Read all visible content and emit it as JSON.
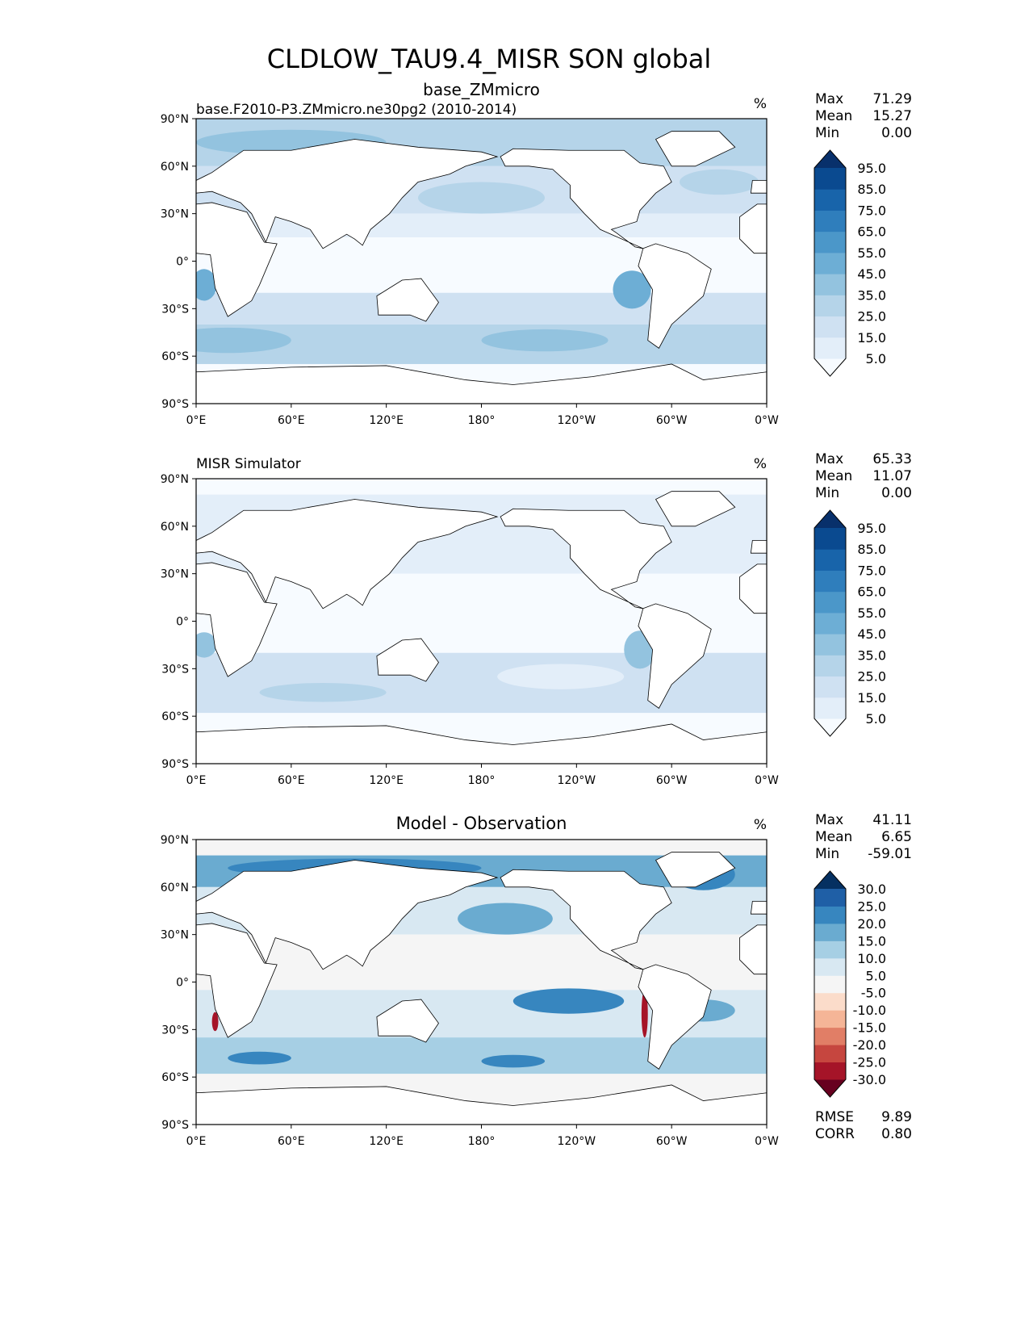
{
  "chart_data": {
    "type": "heatmap",
    "title": "CLDLOW_TAU9.4_MISR SON global",
    "panels": [
      {
        "left_title": "base.F2010-P3.ZMmicro.ne30pg2 (2010-2014)",
        "center_title": "base_ZMmicro",
        "units": "%",
        "stats": [
          [
            "Max",
            "71.29"
          ],
          [
            "Mean",
            "15.27"
          ],
          [
            "Min",
            "0.00"
          ]
        ],
        "colormap": "Blues",
        "levels": [
          "5.0",
          "15.0",
          "25.0",
          "35.0",
          "45.0",
          "55.0",
          "65.0",
          "75.0",
          "85.0",
          "95.0"
        ],
        "colors": [
          "#f7fbff",
          "#e3eef9",
          "#cfe1f2",
          "#b5d4e9",
          "#93c3df",
          "#6daed5",
          "#4b97c9",
          "#2f7ebc",
          "#1864aa",
          "#0a4a90",
          "#08306b"
        ]
      },
      {
        "left_title": "MISR Simulator",
        "center_title": "",
        "units": "%",
        "stats": [
          [
            "Max",
            "65.33"
          ],
          [
            "Mean",
            "11.07"
          ],
          [
            "Min",
            "0.00"
          ]
        ],
        "colormap": "Blues",
        "levels": [
          "5.0",
          "15.0",
          "25.0",
          "35.0",
          "45.0",
          "55.0",
          "65.0",
          "75.0",
          "85.0",
          "95.0"
        ],
        "colors": [
          "#f7fbff",
          "#e3eef9",
          "#cfe1f2",
          "#b5d4e9",
          "#93c3df",
          "#6daed5",
          "#4b97c9",
          "#2f7ebc",
          "#1864aa",
          "#0a4a90",
          "#08306b"
        ]
      },
      {
        "left_title": "",
        "center_title": "Model - Observation",
        "units": "%",
        "stats": [
          [
            "Max",
            "41.11"
          ],
          [
            "Mean",
            "6.65"
          ],
          [
            "Min",
            "-59.01"
          ]
        ],
        "extra_stats": [
          [
            "RMSE",
            "9.89"
          ],
          [
            "CORR",
            "0.80"
          ]
        ],
        "colormap": "RdBu_r",
        "levels": [
          "-30.0",
          "-25.0",
          "-20.0",
          "-15.0",
          "-10.0",
          "-5.0",
          "5.0",
          "10.0",
          "15.0",
          "20.0",
          "25.0",
          "30.0"
        ],
        "colors": [
          "#67001f",
          "#a51428",
          "#c6463f",
          "#e17e66",
          "#f5b597",
          "#fbdcca",
          "#f5f5f5",
          "#d8e8f2",
          "#a6cfe4",
          "#6aabd0",
          "#3786bf",
          "#1f5fa6",
          "#053061"
        ]
      }
    ],
    "xticks": [
      "0°E",
      "60°E",
      "120°E",
      "180°",
      "120°W",
      "60°W",
      "0°W"
    ],
    "yticks": [
      "90°N",
      "60°N",
      "30°N",
      "0°",
      "30°S",
      "60°S",
      "90°S"
    ],
    "xlim": [
      0,
      360
    ],
    "ylim": [
      -90,
      90
    ]
  }
}
